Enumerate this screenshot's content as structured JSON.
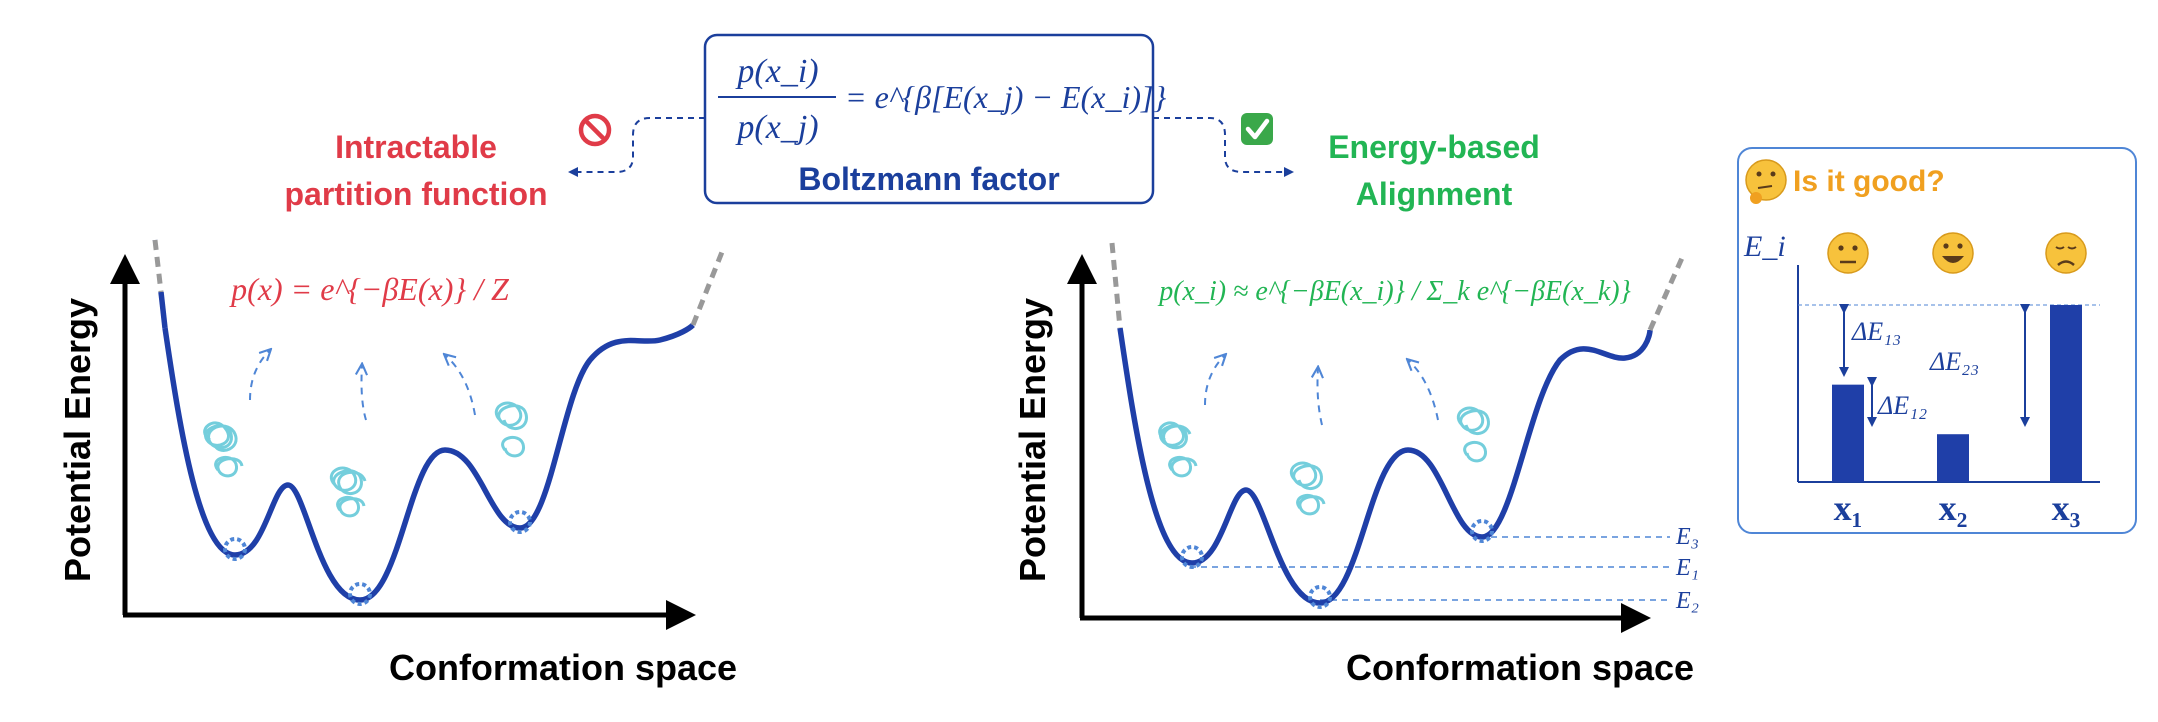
{
  "colors": {
    "curve": "#1f3fa8",
    "red": "#e03b48",
    "green": "#22b554",
    "navy": "#1b3f9c",
    "orange": "#f0a020",
    "light_blue": "#4f86d6",
    "dashed_gray": "#999999"
  },
  "center_box": {
    "formula_numerator": "p(x_i)",
    "formula_denominator": "p(x_j)",
    "formula_rhs": "= e^{β[E(x_j) − E(x_i)]}",
    "caption": "Boltzmann factor"
  },
  "left_branch": {
    "icon": "prohibited-icon",
    "label_line1": "Intractable",
    "label_line2": "partition function"
  },
  "right_branch": {
    "icon": "check-icon",
    "label_line1": "Energy-based",
    "label_line2": "Alignment"
  },
  "left_panel": {
    "ylabel": "Potential Energy",
    "xlabel": "Conformation space",
    "formula": "p(x) = e^{−βE(x)} / Z"
  },
  "right_panel": {
    "ylabel": "Potential Energy",
    "xlabel": "Conformation space",
    "formula": "p(x_i) ≈ e^{−βE(x_i)} / Σ_k e^{−βE(x_k)}",
    "levels": [
      "E3",
      "E1",
      "E2"
    ]
  },
  "inset": {
    "title": "Is it good?",
    "title_icon": "thinking-face-icon",
    "y_axis_label": "E_i",
    "faces": [
      "neutral-face-icon",
      "grinning-face-icon",
      "disappointed-face-icon"
    ],
    "chart_data": {
      "type": "bar",
      "categories": [
        "x1",
        "x2",
        "x3"
      ],
      "values": [
        0.55,
        0.27,
        1.0
      ],
      "annotations": [
        "ΔE13",
        "ΔE12",
        "ΔE23"
      ]
    }
  }
}
